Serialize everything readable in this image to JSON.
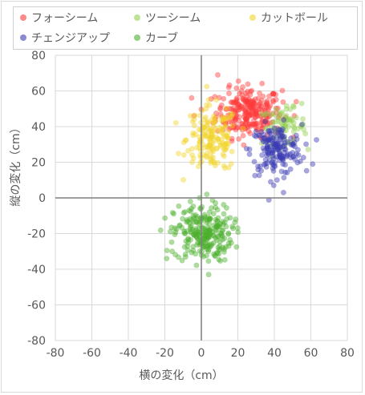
{
  "chart_data": {
    "type": "scatter",
    "title": "",
    "xlabel": "横の変化（cm）",
    "ylabel": "縦の変化（cm）",
    "xlim": [
      -80,
      80
    ],
    "ylim": [
      -80,
      80
    ],
    "x_ticks": [
      -80,
      -60,
      -40,
      -20,
      0,
      20,
      40,
      60,
      80
    ],
    "y_ticks": [
      80,
      60,
      40,
      20,
      0,
      -20,
      -40,
      -60,
      -80
    ],
    "grid": true,
    "legend_position": "top",
    "series": [
      {
        "name": "フォーシーム",
        "color": "#ff3a3a",
        "cluster": {
          "cx": 26,
          "cy": 48,
          "sx": 9,
          "sy": 7,
          "n": 260
        },
        "extra": [
          [
            9,
            69
          ],
          [
            -4,
            46
          ],
          [
            52,
            54
          ],
          [
            15,
            62
          ],
          [
            34,
            41
          ]
        ]
      },
      {
        "name": "ツーシーム",
        "color": "#92d050",
        "cluster": {
          "cx": 45,
          "cy": 40,
          "sx": 6,
          "sy": 5,
          "n": 70
        },
        "extra": [
          [
            55,
            53
          ],
          [
            57,
            36
          ],
          [
            33,
            47
          ],
          [
            52,
            45
          ]
        ]
      },
      {
        "name": "カットボール",
        "color": "#f2d42a",
        "cluster": {
          "cx": 6,
          "cy": 33,
          "sx": 7,
          "sy": 9,
          "n": 160
        },
        "extra": [
          [
            -6,
            46
          ],
          [
            -4,
            44
          ],
          [
            4,
            55
          ],
          [
            -5,
            20
          ],
          [
            15,
            17
          ],
          [
            12,
            44
          ]
        ]
      },
      {
        "name": "チェンジアップ",
        "color": "#3c3cb4",
        "cluster": {
          "cx": 41,
          "cy": 27,
          "sx": 7,
          "sy": 7,
          "n": 170
        },
        "extra": [
          [
            45,
            3
          ],
          [
            61,
            19
          ],
          [
            38,
            9
          ],
          [
            52,
            35
          ],
          [
            33,
            37
          ]
        ]
      },
      {
        "name": "カーブ",
        "color": "#4caf2d",
        "cluster": {
          "cx": 1,
          "cy": -20,
          "sx": 8,
          "sy": 8,
          "n": 240
        },
        "extra": [
          [
            -1,
            0
          ],
          [
            3,
            2
          ],
          [
            -19,
            -34
          ],
          [
            -16,
            -30
          ],
          [
            4,
            -43
          ],
          [
            -6,
            -2
          ],
          [
            17,
            -16
          ],
          [
            15,
            -27
          ]
        ]
      }
    ]
  }
}
